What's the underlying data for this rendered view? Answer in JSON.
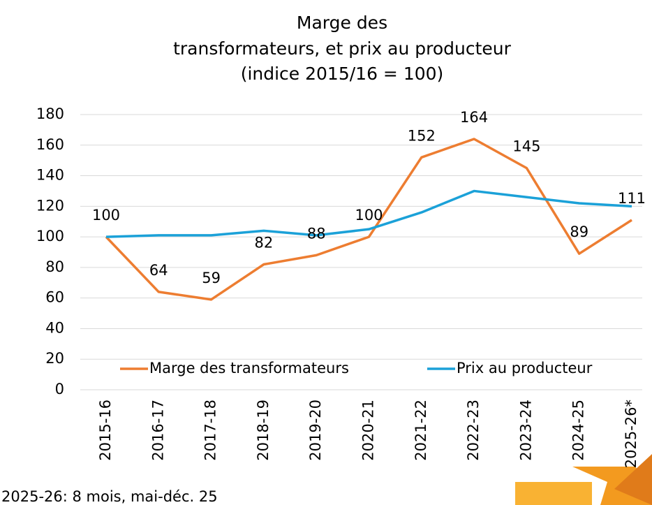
{
  "chart_data": {
    "type": "line",
    "title": [
      "Marge des",
      "transformateurs, et prix au producteur",
      "(indice 2015/16 = 100)"
    ],
    "categories": [
      "2015-16",
      "2016-17",
      "2017-18",
      "2018-19",
      "2019-20",
      "2020-21",
      "2021-22",
      "2022-23",
      "2023-24",
      "2024-25",
      "2025-26*"
    ],
    "series": [
      {
        "name": "Marge des transformateurs",
        "color": "#ed7d31",
        "values": [
          100,
          64,
          59,
          82,
          88,
          100,
          152,
          164,
          145,
          89,
          111
        ],
        "data_labels": true
      },
      {
        "name": "Prix au producteur",
        "color": "#1ba1d8",
        "values": [
          100,
          101,
          101,
          104,
          101,
          105,
          116,
          130,
          126,
          122,
          120
        ],
        "data_labels": false
      }
    ],
    "ylim": [
      0,
      180
    ],
    "yticks": [
      0,
      20,
      40,
      60,
      80,
      100,
      120,
      140,
      160,
      180
    ],
    "grid": true,
    "legend": "inside-bottom",
    "footnote": "2025-26: 8 mois, mai-déc. 25"
  }
}
